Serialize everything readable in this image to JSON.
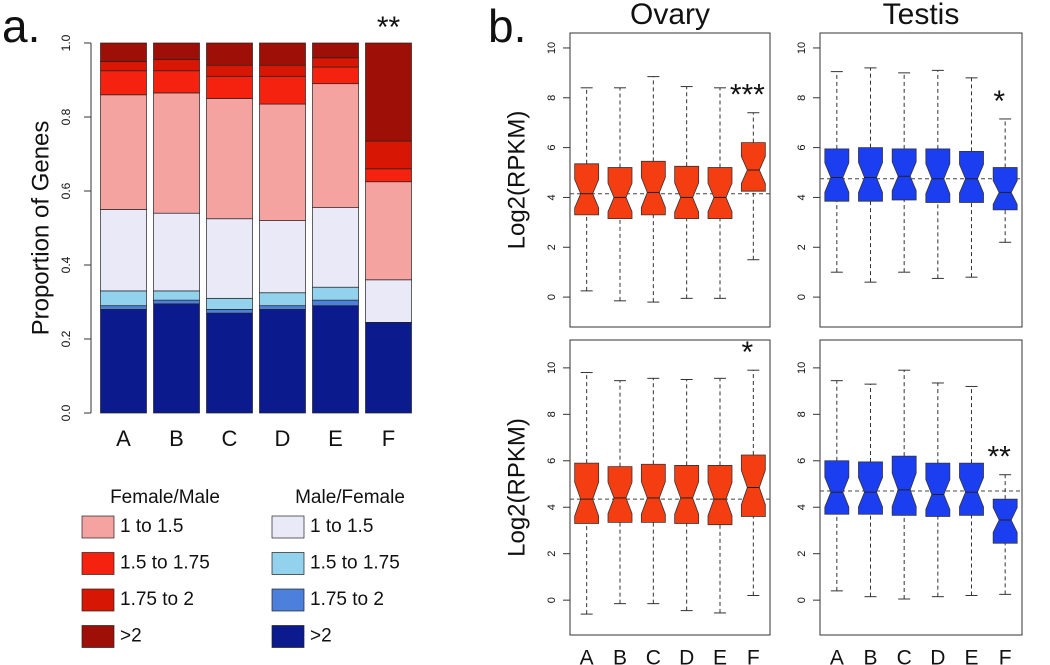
{
  "chart_data": [
    {
      "type": "stacked-bar",
      "panel_label": "a.",
      "ylabel": "Proportion of Genes",
      "categories": [
        "A",
        "B",
        "C",
        "D",
        "E",
        "F"
      ],
      "ylim": [
        0,
        1
      ],
      "yticks": [
        {
          "value": 0,
          "label": "0.0"
        },
        {
          "value": 0.2,
          "label": "0.2"
        },
        {
          "value": 0.4,
          "label": "0.4"
        },
        {
          "value": 0.6,
          "label": "0.6"
        },
        {
          "value": 0.8,
          "label": "0.8"
        },
        {
          "value": 1,
          "label": "1.0"
        }
      ],
      "legend_titles": [
        "Female/Male",
        "Male/Female"
      ],
      "annotations": [
        null,
        null,
        null,
        null,
        null,
        "**"
      ],
      "series": [
        {
          "name": "1 to 1.5",
          "color": "#f4a3a1",
          "values": [
            0.31,
            0.325,
            0.325,
            0.315,
            0.335,
            0.265
          ]
        },
        {
          "name": "1.5 to 1.75",
          "color": "#f5220f",
          "values": [
            0.065,
            0.06,
            0.06,
            0.075,
            0.045,
            0.035
          ]
        },
        {
          "name": "1.75 to 2",
          "color": "#d81604",
          "values": [
            0.025,
            0.03,
            0.03,
            0.03,
            0.025,
            0.075
          ]
        },
        {
          "name": ">2",
          "color": "#9e0f08",
          "values": [
            0.05,
            0.045,
            0.06,
            0.06,
            0.04,
            0.265
          ]
        },
        {
          "name": "1 to 1.5",
          "color": "#e9e9f8",
          "values": [
            0.22,
            0.21,
            0.215,
            0.195,
            0.215,
            0.115
          ]
        },
        {
          "name": "1.5 to 1.75",
          "color": "#92d2ec",
          "values": [
            0.04,
            0.025,
            0.03,
            0.035,
            0.035,
            0
          ]
        },
        {
          "name": "1.75 to 2",
          "color": "#4d7fdc",
          "values": [
            0.01,
            0.01,
            0.01,
            0.01,
            0.015,
            0
          ]
        },
        {
          "name": ">2",
          "color": "#0b1a8c",
          "values": [
            0.28,
            0.295,
            0.27,
            0.28,
            0.29,
            0.245
          ]
        }
      ]
    },
    {
      "type": "box",
      "panel_label": "b.",
      "title": "Ovary",
      "ylabel": "Log2(RPKM)",
      "color": "#f53d12",
      "categories": [
        null,
        null,
        null,
        null,
        null,
        null
      ],
      "ylim": [
        -1.2,
        10.6
      ],
      "yticks": [
        0,
        2,
        4,
        6,
        8,
        10
      ],
      "reference_line": 4.15,
      "annotations": [
        null,
        null,
        null,
        null,
        null,
        "***"
      ],
      "low": [
        0.25,
        -0.15,
        -0.2,
        -0.05,
        -0.05,
        1.5
      ],
      "q1": [
        3.3,
        3.15,
        3.3,
        3.15,
        3.15,
        4.25
      ],
      "median": [
        4.15,
        4.0,
        4.2,
        4.0,
        4.0,
        5.1
      ],
      "q3": [
        5.35,
        5.2,
        5.45,
        5.25,
        5.2,
        6.2
      ],
      "high": [
        8.4,
        8.4,
        8.85,
        8.45,
        8.4,
        7.4
      ]
    },
    {
      "type": "box",
      "title": "Testis",
      "color": "#1b3ef0",
      "categories": [
        null,
        null,
        null,
        null,
        null,
        null
      ],
      "ylim": [
        -1.2,
        10.6
      ],
      "yticks": [
        0,
        2,
        4,
        6,
        8,
        10
      ],
      "reference_line": 4.75,
      "annotations": [
        null,
        null,
        null,
        null,
        null,
        "*"
      ],
      "low": [
        1.0,
        0.6,
        1.0,
        0.75,
        0.8,
        2.2
      ],
      "q1": [
        3.85,
        3.85,
        3.9,
        3.8,
        3.8,
        3.5
      ],
      "median": [
        4.8,
        4.8,
        4.85,
        4.75,
        4.75,
        4.2
      ],
      "q3": [
        5.95,
        6.0,
        5.95,
        5.95,
        5.85,
        5.2
      ],
      "high": [
        9.05,
        9.2,
        9.0,
        9.1,
        8.8,
        7.15
      ]
    },
    {
      "type": "box",
      "ylabel": "Log2(RPKM)",
      "color": "#f53d12",
      "categories": [
        "A",
        "B",
        "C",
        "D",
        "E",
        "F"
      ],
      "ylim": [
        -1.5,
        11.2
      ],
      "yticks": [
        0,
        2,
        4,
        6,
        8,
        10
      ],
      "reference_line": 4.35,
      "annotations": [
        null,
        null,
        null,
        null,
        null,
        "*"
      ],
      "low": [
        -0.6,
        -0.15,
        -0.15,
        -0.45,
        -0.55,
        0.2
      ],
      "q1": [
        3.3,
        3.35,
        3.35,
        3.3,
        3.25,
        3.6
      ],
      "median": [
        4.35,
        4.4,
        4.4,
        4.4,
        4.35,
        4.85
      ],
      "q3": [
        5.9,
        5.75,
        5.85,
        5.8,
        5.8,
        6.25
      ],
      "high": [
        9.8,
        9.45,
        9.55,
        9.5,
        9.55,
        9.9
      ]
    },
    {
      "type": "box",
      "color": "#1b3ef0",
      "categories": [
        "A",
        "B",
        "C",
        "D",
        "E",
        "F"
      ],
      "ylim": [
        -1.5,
        11.2
      ],
      "yticks": [
        0,
        2,
        4,
        6,
        8,
        10
      ],
      "reference_line": 4.7,
      "annotations": [
        null,
        null,
        null,
        null,
        null,
        "**"
      ],
      "low": [
        0.4,
        0.15,
        0.05,
        0.15,
        0.2,
        0.25
      ],
      "q1": [
        3.7,
        3.7,
        3.65,
        3.6,
        3.65,
        2.45
      ],
      "median": [
        4.65,
        4.65,
        4.75,
        4.55,
        4.65,
        3.45
      ],
      "q3": [
        6.0,
        5.95,
        6.2,
        5.9,
        5.9,
        4.35
      ],
      "high": [
        9.45,
        9.3,
        9.9,
        9.35,
        9.2,
        5.4
      ]
    }
  ]
}
